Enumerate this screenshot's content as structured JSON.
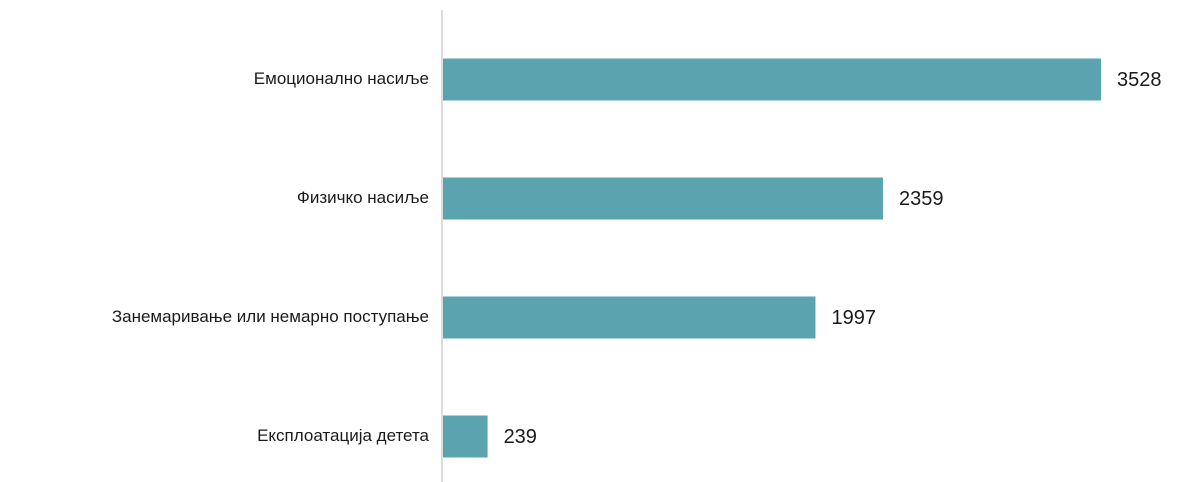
{
  "chart_data": {
    "type": "bar",
    "orientation": "horizontal",
    "title": "",
    "xlabel": "",
    "ylabel": "",
    "categories": [
      "Емоционално насиље",
      "Физичко насиље",
      "Занемаривање или немарно поступање",
      "Експлоатација детета"
    ],
    "values": [
      3528,
      2359,
      1997,
      239
    ],
    "data_labels": [
      "3528",
      "2359",
      "1997",
      "239"
    ],
    "xlim": [
      0,
      4000
    ],
    "grid": false,
    "legend": "none",
    "bar_color": "#5BA3AF",
    "axis_color": "#D0D0D0"
  }
}
